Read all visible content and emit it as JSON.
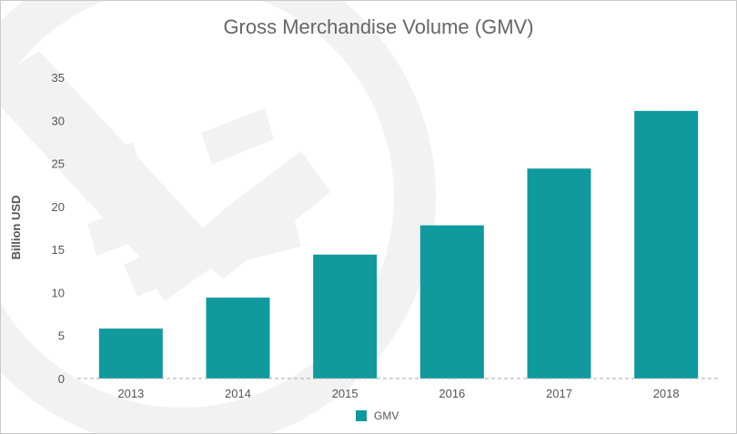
{
  "chart_data": {
    "type": "bar",
    "title": "Gross Merchandise Volume (GMV)",
    "xlabel": "",
    "ylabel": "Billion USD",
    "categories": [
      "2013",
      "2014",
      "2015",
      "2016",
      "2017",
      "2018"
    ],
    "series": [
      {
        "name": "GMV",
        "values": [
          5.8,
          9.4,
          14.4,
          17.8,
          24.4,
          31.1
        ],
        "color": "#109a9e"
      }
    ],
    "ylim": [
      0,
      35
    ],
    "yticks": [
      0,
      5,
      10,
      15,
      20,
      25,
      30,
      35
    ],
    "grid": false,
    "baseline_style": "dashed",
    "legend_position": "bottom-center",
    "background_watermark": "yen-icon"
  }
}
